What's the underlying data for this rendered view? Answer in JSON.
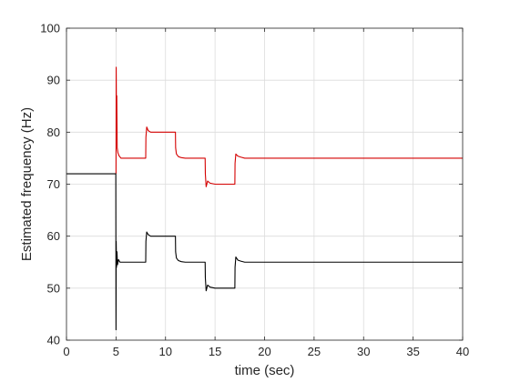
{
  "chart_data": {
    "type": "line",
    "xlabel": "time (sec)",
    "ylabel": "Estimated frequency (Hz)",
    "xlim": [
      0,
      40
    ],
    "ylim": [
      40,
      100
    ],
    "xticks": [
      "0",
      "5",
      "10",
      "15",
      "20",
      "25",
      "30",
      "35",
      "40"
    ],
    "yticks": [
      "40",
      "50",
      "60",
      "70",
      "80",
      "90",
      "100"
    ],
    "grid": true,
    "legend": "none",
    "series": [
      {
        "color": "#d40000",
        "x": [
          5.0,
          5.02,
          5.05,
          5.08,
          5.12,
          5.2,
          5.3,
          5.5,
          6.0,
          7.0,
          8.0,
          8.02,
          8.1,
          8.25,
          8.5,
          9.0,
          10.0,
          11.0,
          11.02,
          11.1,
          11.3,
          11.6,
          12.0,
          13.0,
          14.0,
          14.02,
          14.1,
          14.25,
          14.5,
          15.0,
          16.0,
          17.0,
          17.02,
          17.1,
          17.3,
          17.6,
          18.0,
          20.0,
          25.0,
          30.0,
          35.0,
          40.0
        ],
        "values": [
          72,
          92.5,
          81,
          87,
          77,
          76,
          75.5,
          75,
          75,
          75,
          75,
          79,
          81,
          80.3,
          80,
          80,
          80,
          80,
          77,
          75.8,
          75.3,
          75.1,
          75,
          75,
          75,
          72,
          69.5,
          70.6,
          70.2,
          70,
          70,
          70,
          74,
          75.8,
          75.4,
          75.2,
          75,
          75,
          75,
          75,
          75,
          75
        ]
      },
      {
        "color": "#000000",
        "x": [
          0,
          4.98,
          5.0,
          5.02,
          5.05,
          5.1,
          5.15,
          5.25,
          5.4,
          5.6,
          6.0,
          7.0,
          8.0,
          8.02,
          8.1,
          8.25,
          8.5,
          9.0,
          10.0,
          11.0,
          11.02,
          11.1,
          11.3,
          11.6,
          12.0,
          13.0,
          14.0,
          14.02,
          14.1,
          14.25,
          14.5,
          15.0,
          16.0,
          17.0,
          17.02,
          17.1,
          17.3,
          17.6,
          18.0,
          20.0,
          25.0,
          30.0,
          35.0,
          40.0
        ],
        "values": [
          72,
          72,
          42,
          59,
          54,
          57,
          54.5,
          55.5,
          55,
          55,
          55,
          55,
          55,
          59,
          60.8,
          60.3,
          60,
          60,
          60,
          60,
          57,
          55.8,
          55.3,
          55.1,
          55,
          55,
          55,
          52,
          49.5,
          50.6,
          50.2,
          50,
          50,
          50,
          54,
          56,
          55.4,
          55.2,
          55,
          55,
          55,
          55,
          55,
          55
        ]
      }
    ]
  }
}
